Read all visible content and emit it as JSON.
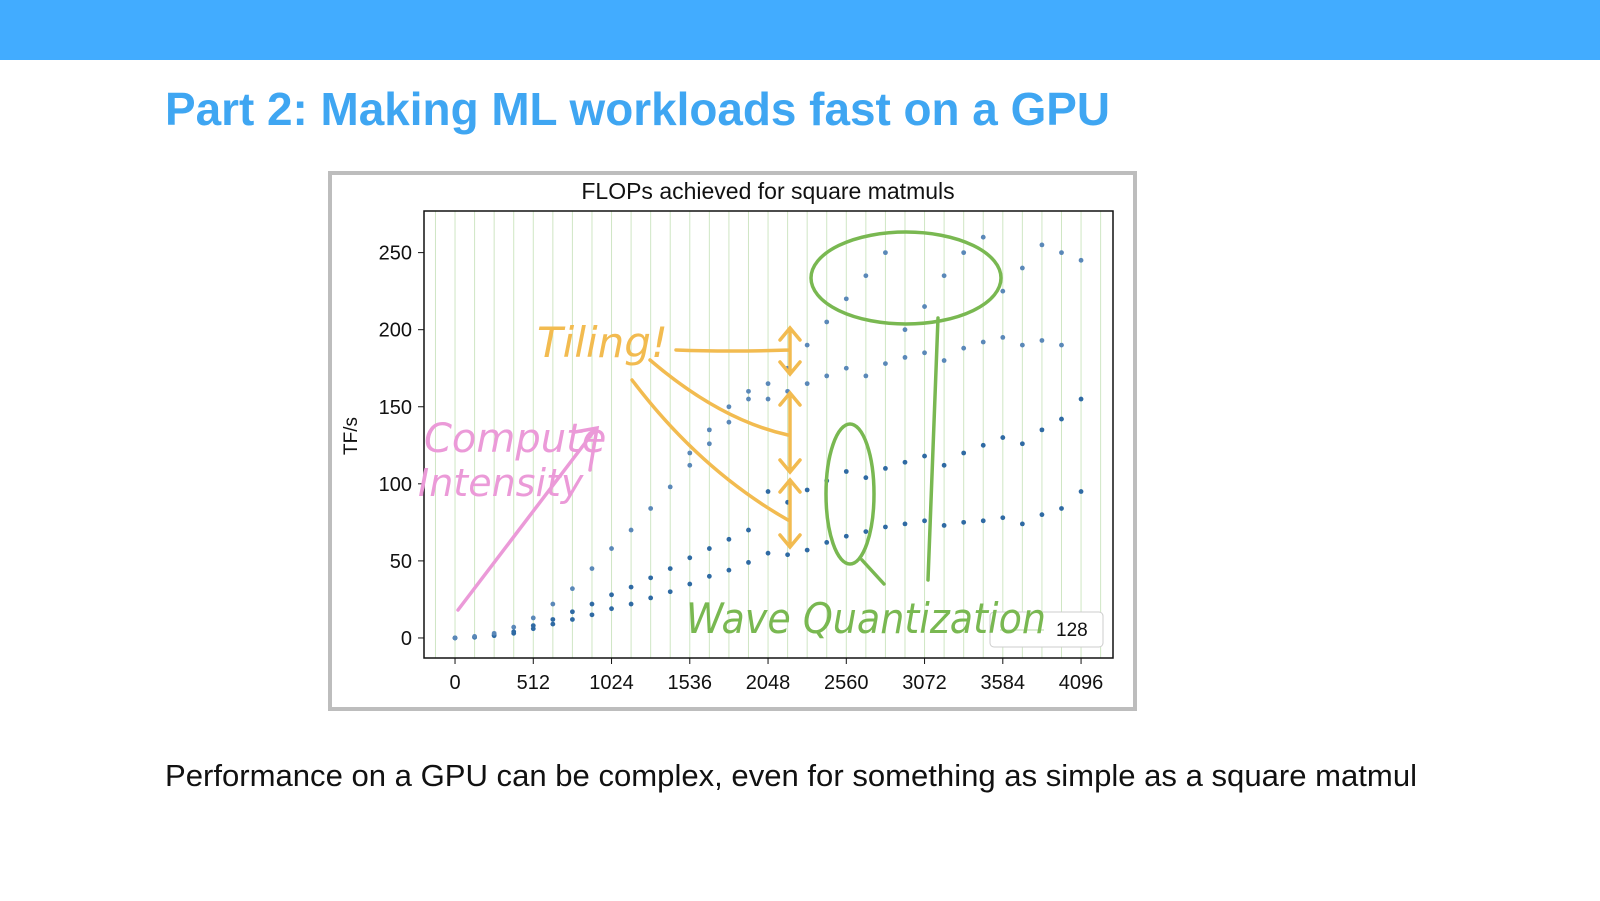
{
  "slide": {
    "title": "Part 2: Making ML workloads fast on a GPU",
    "caption": "Performance on a GPU can be complex, even for something as simple as a square matmul"
  },
  "chart_data": {
    "type": "scatter",
    "title": "FLOPs achieved for square matmuls",
    "y_label": "TF/s",
    "xlim": [
      -203,
      4305
    ],
    "ylim": [
      -13,
      277
    ],
    "xticks": [
      0,
      512,
      1024,
      1536,
      2048,
      2560,
      3072,
      3584,
      4096
    ],
    "yticks": [
      0,
      50,
      100,
      150,
      200,
      250
    ],
    "vline_spacing": 128,
    "vline_color": "#cfe6c4",
    "series": [
      {
        "color": "#2f6aa3",
        "x": [
          0,
          128,
          256,
          384,
          512,
          640,
          768,
          896,
          1024,
          1152,
          1280,
          1408,
          1536,
          1664,
          1792,
          1920,
          2048,
          2176,
          2304,
          2432,
          2560,
          2688,
          2816,
          2944,
          3072,
          3200,
          3328,
          3456,
          3584,
          3712,
          3840,
          3968,
          4096
        ],
        "values": [
          0,
          0.5,
          1.5,
          3,
          6,
          9,
          12,
          15,
          19,
          22,
          26,
          30,
          35,
          40,
          44,
          49,
          55,
          54,
          57,
          62,
          66,
          69,
          72,
          74,
          76,
          73,
          75,
          76,
          78,
          74,
          80,
          84,
          95
        ]
      },
      {
        "color": "#2f6aa3",
        "x": [
          0,
          128,
          256,
          384,
          512,
          640,
          768,
          896,
          1024,
          1152,
          1280,
          1408,
          1536,
          1664,
          1792,
          1920,
          2048,
          2176,
          2304,
          2432,
          2560,
          2688,
          2816,
          2944,
          3072,
          3200,
          3328,
          3456,
          3584,
          3712,
          3840,
          3968,
          4096
        ],
        "values": [
          0,
          0.5,
          2,
          4,
          8,
          12,
          17,
          22,
          28,
          33,
          39,
          45,
          52,
          58,
          64,
          70,
          95,
          88,
          96,
          102,
          108,
          104,
          110,
          114,
          118,
          112,
          120,
          125,
          130,
          126,
          135,
          142,
          155
        ]
      },
      {
        "color": "#5a88b8",
        "x": [
          0,
          128,
          256,
          384,
          512,
          640,
          768,
          896,
          1024,
          1152,
          1280,
          1408,
          1536,
          1664,
          1792,
          1920,
          2048,
          2176,
          2304,
          2432,
          2560,
          2688,
          2816,
          2944,
          3072,
          3200,
          3328,
          3456,
          3584,
          3712,
          3840,
          3968,
          4096
        ],
        "values": [
          0,
          1,
          3,
          7,
          13,
          22,
          32,
          45,
          58,
          70,
          84,
          98,
          112,
          126,
          140,
          155,
          165,
          175,
          190,
          205,
          220,
          235,
          250,
          200,
          215,
          235,
          250,
          260,
          225,
          240,
          255,
          250,
          245
        ]
      },
      {
        "color": "#5a88b8",
        "x": [
          1536,
          1664,
          1792,
          1920,
          2048,
          2176,
          2304,
          2432,
          2560,
          2688,
          2816,
          2944,
          3072,
          3200,
          3328,
          3456,
          3584,
          3712,
          3840,
          3968
        ],
        "values": [
          120,
          135,
          150,
          160,
          155,
          160,
          165,
          170,
          175,
          170,
          178,
          182,
          185,
          180,
          188,
          192,
          195,
          190,
          193,
          190
        ]
      }
    ],
    "annotations": {
      "tiling": "Tiling!",
      "compute": "Compute",
      "intensity": "Intensity",
      "wave": "Wave Quantization"
    }
  }
}
